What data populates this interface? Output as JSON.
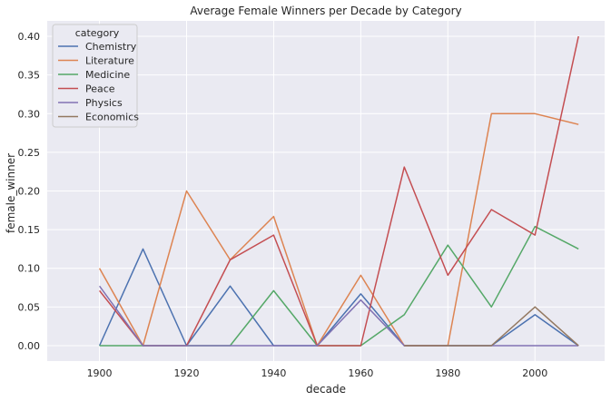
{
  "chart_data": {
    "type": "line",
    "title": "Average Female Winners per Decade by Category",
    "xlabel": "decade",
    "ylabel": "female_winner",
    "x": [
      1900,
      1910,
      1920,
      1930,
      1940,
      1950,
      1960,
      1970,
      1980,
      1990,
      2000,
      2010
    ],
    "xticks": [
      "1900",
      "1920",
      "1940",
      "1960",
      "1980",
      "2000"
    ],
    "yticks": [
      "0.00",
      "0.05",
      "0.10",
      "0.15",
      "0.20",
      "0.25",
      "0.30",
      "0.35",
      "0.40"
    ],
    "xlim": [
      1888,
      2016
    ],
    "ylim": [
      -0.02,
      0.42
    ],
    "grid": true,
    "background": "#eaeaf2",
    "legend": {
      "title": "category",
      "placement": "top-left"
    },
    "series": [
      {
        "name": "Chemistry",
        "color": "#4c72b0",
        "values": [
          0.0,
          0.125,
          0.0,
          0.077,
          0.0,
          0.0,
          0.067,
          0.0,
          0.0,
          0.0,
          0.04,
          0.0
        ]
      },
      {
        "name": "Literature",
        "color": "#dd8452",
        "values": [
          0.1,
          0.0,
          0.2,
          0.111,
          0.167,
          0.0,
          0.091,
          0.0,
          0.0,
          0.3,
          0.3,
          0.286
        ]
      },
      {
        "name": "Medicine",
        "color": "#55a868",
        "values": [
          0.0,
          0.0,
          0.0,
          0.0,
          0.071,
          0.0,
          0.0,
          0.04,
          0.13,
          0.05,
          0.154,
          0.125
        ]
      },
      {
        "name": "Peace",
        "color": "#c44e52",
        "values": [
          0.071,
          0.0,
          0.0,
          0.111,
          0.143,
          0.0,
          0.0,
          0.231,
          0.091,
          0.176,
          0.143,
          0.4
        ]
      },
      {
        "name": "Physics",
        "color": "#8172b3",
        "values": [
          0.077,
          0.0,
          0.0,
          0.0,
          0.0,
          0.0,
          0.059,
          0.0,
          0.0,
          0.0,
          0.0,
          0.0
        ]
      },
      {
        "name": "Economics",
        "color": "#937860",
        "values": [
          null,
          null,
          null,
          null,
          null,
          null,
          null,
          0.0,
          0.0,
          0.0,
          0.05,
          0.0
        ]
      }
    ]
  }
}
